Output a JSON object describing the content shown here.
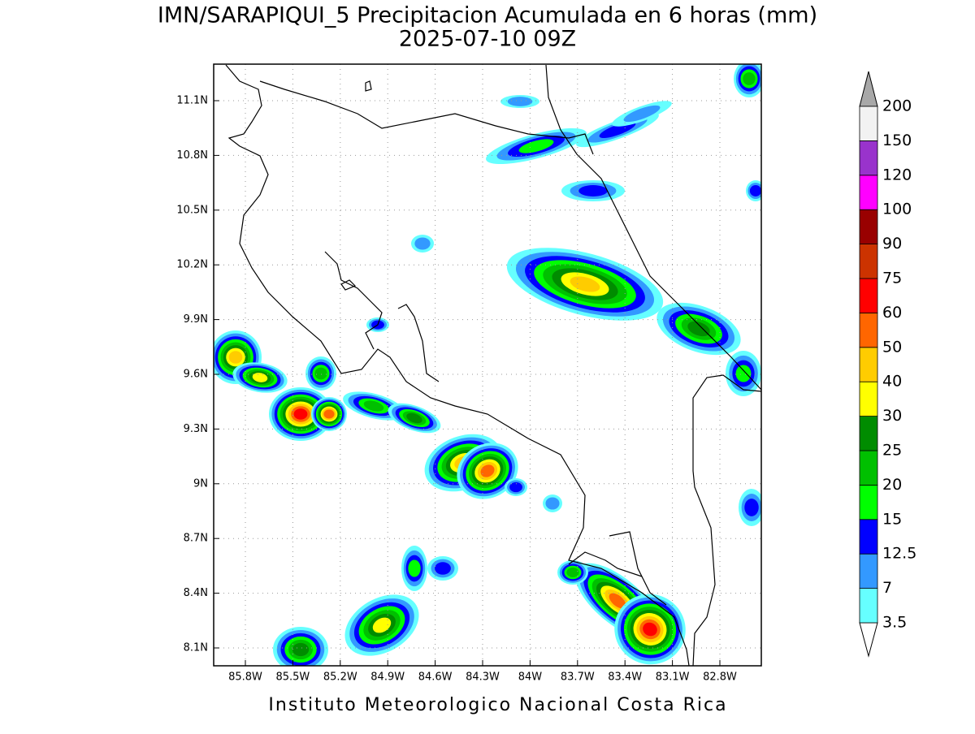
{
  "header": {
    "title": "IMN/SARAPIQUI_5 Precipitacion Acumulada en 6 horas (mm)",
    "subtitle": "2025-07-10 09Z"
  },
  "map": {
    "lat_labels": [
      "11.1N",
      "10.8N",
      "10.5N",
      "10.2N",
      "9.9N",
      "9.6N",
      "9.3N",
      "9N",
      "8.7N",
      "8.4N",
      "8.1N"
    ],
    "lon_labels": [
      "85.8W",
      "85.5W",
      "85.2W",
      "84.9W",
      "84.6W",
      "84.3W",
      "84W",
      "83.7W",
      "83.4W",
      "83.1W",
      "82.8W"
    ]
  },
  "colorbar": {
    "labels": [
      "3.5",
      "7",
      "12.5",
      "15",
      "20",
      "25",
      "30",
      "40",
      "50",
      "60",
      "75",
      "90",
      "100",
      "120",
      "150",
      "200"
    ],
    "colors": [
      "#66ffff",
      "#3399ff",
      "#0000ff",
      "#00ff00",
      "#00c000",
      "#008c00",
      "#ffff00",
      "#ffcc00",
      "#ff6600",
      "#ff0000",
      "#cc3300",
      "#990000",
      "#ff00ff",
      "#9933cc",
      "#f2f2f2"
    ],
    "under_color": "#ffffff",
    "over_color": "#a8a8a8"
  },
  "footer": {
    "text": "Instituto Meteorologico Nacional Costa Rica"
  }
}
